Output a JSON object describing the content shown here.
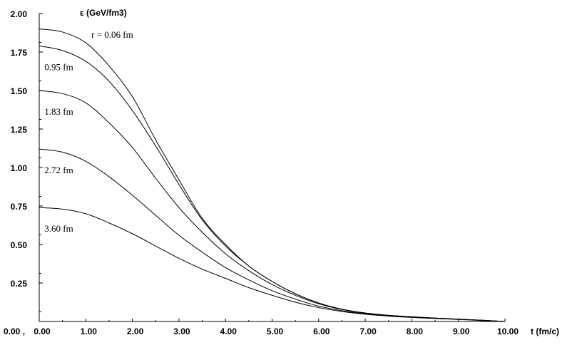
{
  "chart_data": {
    "type": "line",
    "title": "",
    "xlabel": "t (fm/c)",
    "ylabel": "ε (GeV/fm3)",
    "xlim": [
      0,
      10
    ],
    "ylim": [
      0,
      2
    ],
    "origin_label": "0.00 ,",
    "x_ticks": [
      "0.00",
      "1.00",
      "2.00",
      "3.00",
      "4.00",
      "5.00",
      "6.00",
      "7.00",
      "8.00",
      "9.00",
      "10.00"
    ],
    "y_ticks": [
      "0.25",
      "0.50",
      "0.75",
      "1.00",
      "1.25",
      "1.50",
      "1.75",
      "2.00"
    ],
    "x": [
      0,
      0.5,
      1,
      1.5,
      2,
      2.5,
      3,
      3.5,
      4,
      4.5,
      5,
      5.5,
      6,
      6.5,
      7,
      7.5,
      8,
      8.5,
      9,
      9.5,
      10
    ],
    "series": [
      {
        "name": "r = 0.06 fm",
        "values": [
          1.9,
          1.88,
          1.81,
          1.66,
          1.46,
          1.18,
          0.92,
          0.67,
          0.5,
          0.36,
          0.26,
          0.18,
          0.12,
          0.08,
          0.055,
          0.04,
          0.03,
          0.022,
          0.015,
          0.008,
          0.0
        ]
      },
      {
        "name": "0.95 fm",
        "values": [
          1.79,
          1.76,
          1.69,
          1.56,
          1.37,
          1.14,
          0.89,
          0.66,
          0.49,
          0.36,
          0.26,
          0.18,
          0.12,
          0.08,
          0.055,
          0.04,
          0.03,
          0.022,
          0.015,
          0.008,
          0.0
        ]
      },
      {
        "name": "1.83 fm",
        "values": [
          1.5,
          1.48,
          1.42,
          1.29,
          1.13,
          0.93,
          0.74,
          0.58,
          0.44,
          0.33,
          0.24,
          0.17,
          0.115,
          0.078,
          0.054,
          0.04,
          0.03,
          0.022,
          0.015,
          0.008,
          0.0
        ]
      },
      {
        "name": "2.72 fm",
        "values": [
          1.12,
          1.1,
          1.04,
          0.94,
          0.82,
          0.69,
          0.56,
          0.45,
          0.35,
          0.27,
          0.2,
          0.145,
          0.1,
          0.07,
          0.05,
          0.038,
          0.028,
          0.02,
          0.014,
          0.007,
          0.0
        ]
      },
      {
        "name": "3.60 fm",
        "values": [
          0.74,
          0.73,
          0.7,
          0.64,
          0.57,
          0.49,
          0.41,
          0.34,
          0.28,
          0.22,
          0.17,
          0.125,
          0.09,
          0.065,
          0.047,
          0.035,
          0.026,
          0.019,
          0.013,
          0.006,
          0.0
        ]
      }
    ],
    "series_label_points": [
      [
        0.12,
        1.57
      ],
      [
        0.05,
        1.45
      ],
      [
        0.05,
        1.32
      ],
      [
        0.05,
        0.99
      ],
      [
        0.05,
        0.38
      ]
    ],
    "grid": false,
    "legend": "none"
  }
}
